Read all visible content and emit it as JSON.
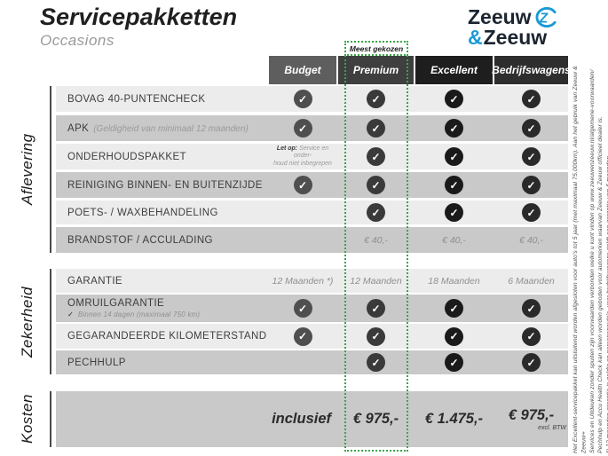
{
  "page": {
    "title": "Servicepakketten",
    "subtitle": "Occasions"
  },
  "logo": {
    "word1": "Zeeuw",
    "amp": "&",
    "word2": "Zeeuw",
    "blue": "#1a9ad6",
    "dark": "#1b2530"
  },
  "badge": {
    "label": "Meest gekozen",
    "green": "#3aa648"
  },
  "columns": [
    {
      "label": "Budget",
      "header_bg": "#5e5e5e",
      "check_bg": "#4f4f4f"
    },
    {
      "label": "Premium",
      "header_bg": "#3f3f3f",
      "check_bg": "#3a3a3a"
    },
    {
      "label": "Excellent",
      "header_bg": "#1e1e1e",
      "check_bg": "#1a1a1a"
    },
    {
      "label": "Bedrijfswagens",
      "header_bg": "#2e2e2e",
      "check_bg": "#2a2a2a"
    }
  ],
  "sections": [
    {
      "label": "Aflevering",
      "rows": [
        {
          "label": "BOVAG 40-PUNTENCHECK",
          "cells": [
            "check",
            "check",
            "check",
            "check"
          ]
        },
        {
          "label": "APK",
          "inline_note": "(Geldigheid van minimaal 12 maanden)",
          "cells": [
            "check",
            "check",
            "check",
            "check"
          ]
        },
        {
          "label": "ONDERHOUDSPAKKET",
          "letop": {
            "bold": "Let op:",
            "line1": "Service en onder-",
            "line2": "houd niet inbegrepen"
          },
          "cells": [
            "letop",
            "check",
            "check",
            "check"
          ]
        },
        {
          "label": "REINIGING BINNEN- EN BUITENZIJDE",
          "cells": [
            "check",
            "check",
            "check",
            "check"
          ]
        },
        {
          "label": "POETS- / WAXBEHANDELING",
          "cells": [
            "",
            "check",
            "check",
            "check"
          ]
        },
        {
          "label": "BRANDSTOF / ACCULADING",
          "cells": [
            "",
            "€ 40,-",
            "€ 40,-",
            "€ 40,-"
          ]
        }
      ]
    },
    {
      "label": "Zekerheid",
      "rows": [
        {
          "label": "GARANTIE",
          "cells": [
            "12 Maanden *)",
            "12 Maanden",
            "18 Maanden",
            "6 Maanden"
          ]
        },
        {
          "label": "OMRUILGARANTIE",
          "subnote_check": "✓",
          "subnote": "Binnen 14 dagen (maximaal 750 km)",
          "cells": [
            "check",
            "check",
            "check",
            "check"
          ]
        },
        {
          "label": "GEGARANDEERDE KILOMETERSTAND",
          "cells": [
            "check",
            "check",
            "check",
            "check"
          ]
        },
        {
          "label": "PECHHULP",
          "cells": [
            "",
            "check",
            "check",
            "check"
          ]
        }
      ]
    },
    {
      "label": "Kosten"
    }
  ],
  "kosten": {
    "inclusief_label": "inclusief",
    "prices": [
      "€ 975,-",
      "€ 1.475,-",
      "€ 975,-"
    ],
    "price_note": "excl. BTW"
  },
  "disclaimer_lines": [
    "Het Excellent-servicepakket kan uitsluitend worden afgesloten voor auto's tot 5 jaar (met maximaal 75.000km). Aan het gebruik van Zeeuw & Zeeuw+",
    "Services en Uitdeuken zonder spuiten zijn voorwaarden verbonden welke u kunt vinden op www.zeeuwenzeeuw.nl/algemene-voorwaarden/",
    "Pechhulp en Accu Health Check kan alleen worden geboden voor automerken waarvan Zeeuw & Zeeuw officieel dealer is.",
    "*) 12 maanden garantie is geldig op personenauto's, voor bedrijfswagens geldt een garantie van 6 maanden."
  ],
  "check_glyph": "✓"
}
